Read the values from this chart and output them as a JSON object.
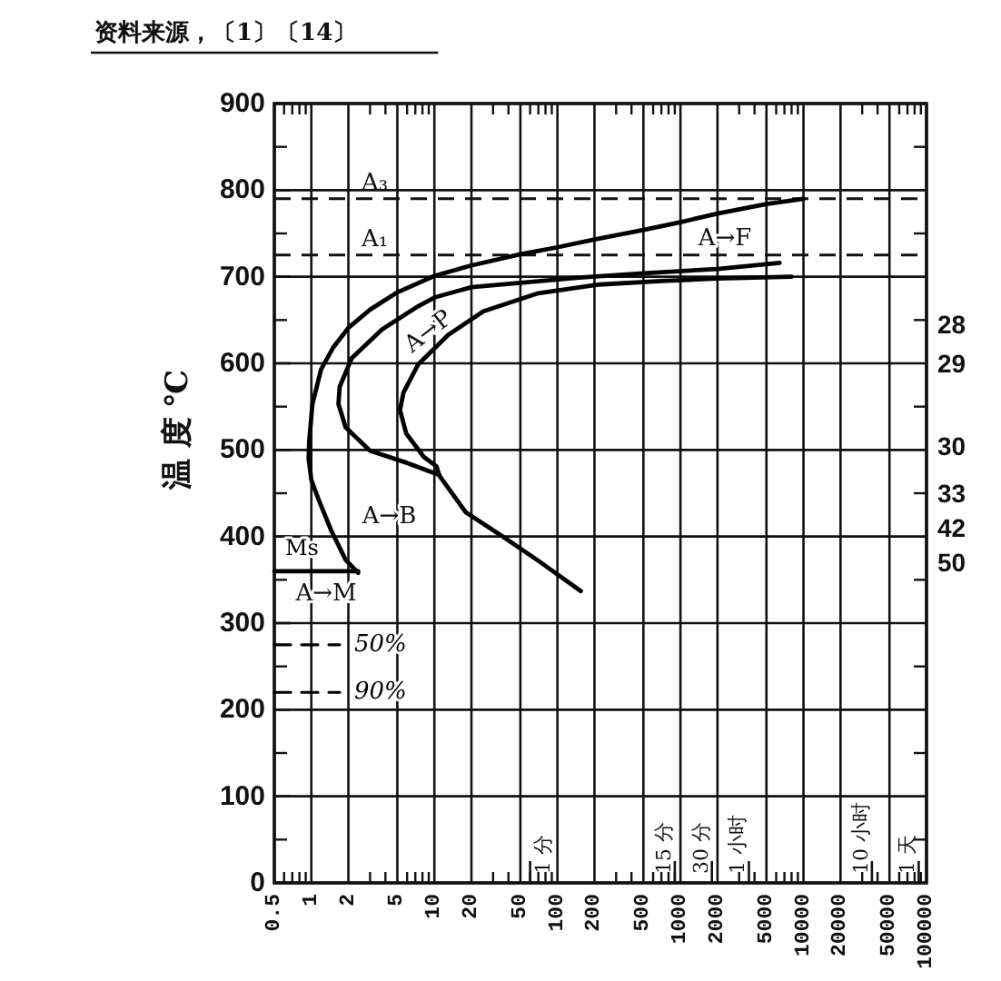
{
  "chart_data": {
    "type": "line",
    "log": "x",
    "ylabel": "温 度 ℃",
    "annotations": [
      "资料来源，〔1〕〔14〕",
      "A→P",
      "A→F",
      "A→B",
      "A→M",
      "1 分",
      "15 分",
      "30 分",
      "1 小时",
      "10 小时",
      "1 天",
      "28",
      "29",
      "30",
      "33",
      "42",
      "50"
    ],
    "xlim": [
      0.5,
      100000
    ],
    "xticks": [
      0.5,
      1,
      2,
      5,
      10,
      20,
      50,
      100,
      200,
      500,
      1000,
      2000,
      5000,
      10000,
      20000,
      50000,
      100000
    ],
    "ylim": [
      0,
      900
    ],
    "yticks": [
      0,
      100,
      200,
      300,
      400,
      500,
      600,
      700,
      800,
      900
    ],
    "grid": true,
    "ref_lines": [
      {
        "axis": "y",
        "value": 790,
        "label": "A₃",
        "line_style": "dashed"
      },
      {
        "axis": "y",
        "value": 725,
        "label": "A₁",
        "line_style": "dashed"
      }
    ],
    "series": [
      {
        "color": "#000000",
        "x": [
          10000,
          5000,
          2000,
          1000,
          500,
          200,
          100,
          50,
          20,
          10,
          5,
          3,
          2,
          1.5,
          1.2,
          1.02,
          0.96,
          0.95,
          1.0,
          1.15,
          1.45,
          1.9,
          2.4
        ],
        "values": [
          790,
          784,
          773,
          763,
          754,
          743,
          734,
          726,
          713,
          701,
          682,
          662,
          641,
          618,
          593,
          553,
          510,
          490,
          465,
          442,
          407,
          373,
          358
        ]
      },
      {
        "color": "#000000",
        "x": [
          6400,
          2000,
          500,
          150,
          50,
          20,
          10,
          7.4,
          3.75,
          2.13,
          1.7,
          1.66,
          1.9,
          3,
          6,
          11
        ],
        "values": [
          716,
          709,
          704,
          699,
          693,
          688,
          676,
          666,
          639,
          606,
          573,
          553,
          526,
          499,
          485,
          471
        ]
      },
      {
        "color": "#000000",
        "x": [
          8000,
          2000,
          700,
          220,
          70,
          25,
          13,
          7.4,
          5.6,
          5.25,
          5.9,
          8.2,
          10.4,
          11,
          18,
          36,
          70,
          155
        ],
        "values": [
          700,
          698,
          695,
          691,
          681,
          660,
          633,
          599,
          566,
          546,
          519,
          492,
          481,
          470,
          428,
          400,
          372,
          337
        ]
      },
      {
        "name": "Ms",
        "color": "#000000",
        "x": [
          0.5,
          2.4
        ],
        "values": [
          360,
          360
        ]
      },
      {
        "name": "50%",
        "color": "#000000",
        "line_style": "dashed",
        "x": [
          0.5,
          1.7
        ],
        "values": [
          275,
          275
        ]
      },
      {
        "name": "90%",
        "color": "#000000",
        "line_style": "dashed",
        "x": [
          0.5,
          1.7
        ],
        "values": [
          220,
          220
        ]
      }
    ]
  }
}
